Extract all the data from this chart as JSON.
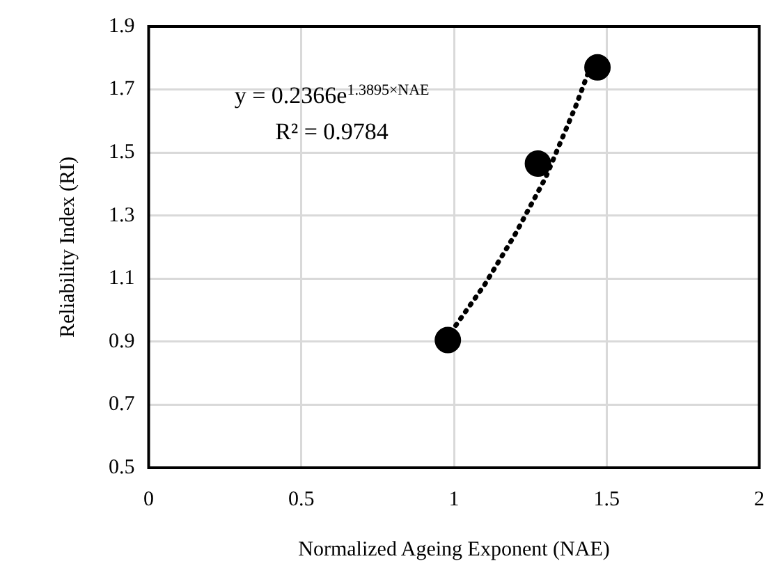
{
  "chart_data": {
    "type": "scatter",
    "xlabel": "Normalized Ageing Exponent (NAE)",
    "ylabel": "Reliability Index (RI)",
    "series": [
      {
        "color": "#000000",
        "x": [
          0.98,
          1.275,
          1.47
        ],
        "values": [
          0.905,
          1.465,
          1.77
        ],
        "marker": "circle"
      },
      {
        "type": "line",
        "color": "#000000",
        "line_style": "dotted",
        "marker": "none",
        "x": [
          0.99,
          1.1,
          1.2,
          1.3,
          1.4,
          1.45
        ],
        "values": [
          0.93,
          1.08,
          1.24,
          1.42,
          1.65,
          1.78
        ]
      }
    ],
    "xlim": [
      0,
      2
    ],
    "xticks": [
      0,
      0.5,
      1,
      1.5,
      2
    ],
    "ylim": [
      0.5,
      1.9
    ],
    "yticks": [
      0.5,
      0.7,
      0.9,
      1.1,
      1.3,
      1.5,
      1.7,
      1.9
    ],
    "grid": true,
    "legend": false,
    "annotations": [
      "y = 0.2366e$^{1.3895×NAE}$",
      "R² = 0.9784"
    ]
  }
}
